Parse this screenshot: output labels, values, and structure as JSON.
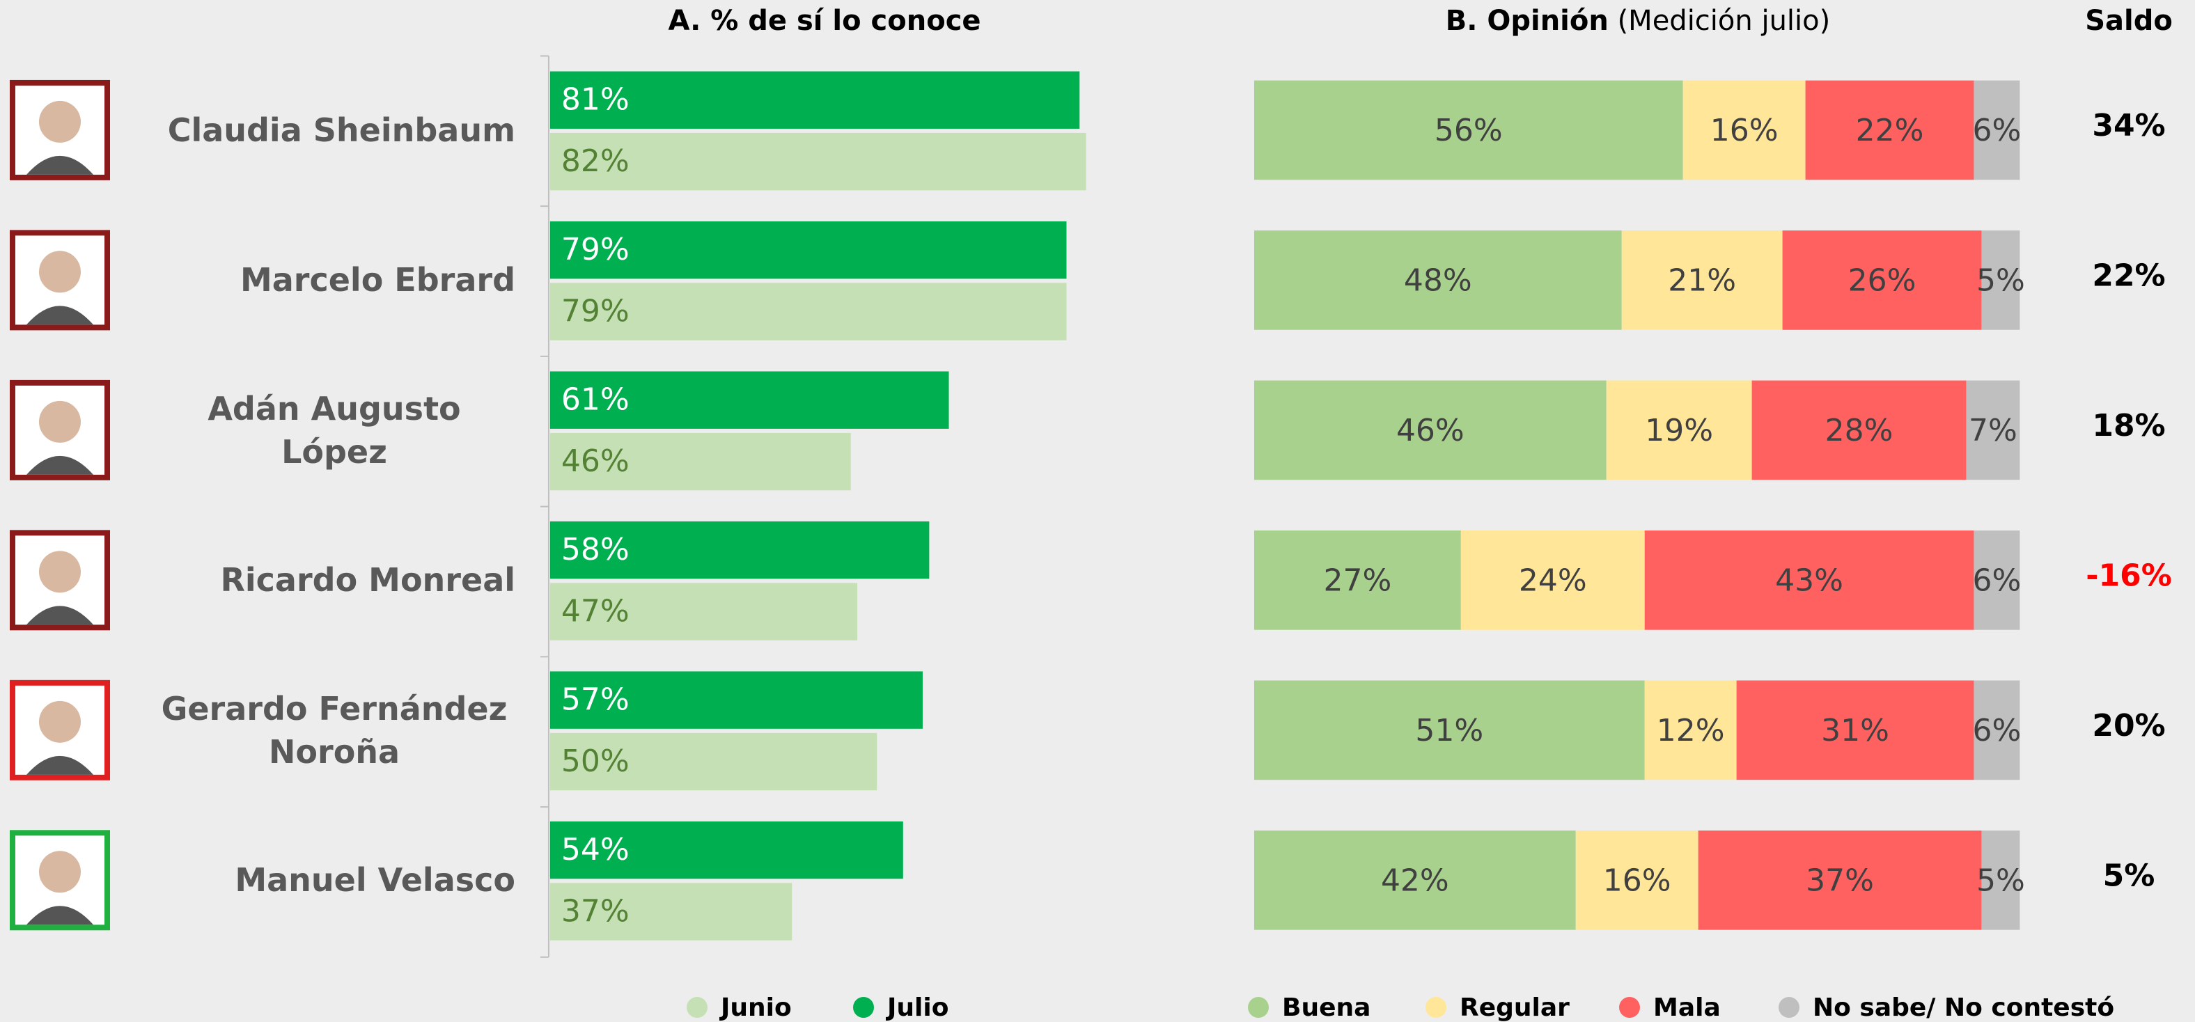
{
  "chart_data": [
    {
      "type": "bar",
      "orientation": "horizontal",
      "title": "A. % de sí lo conoce",
      "categories": [
        "Claudia Sheinbaum",
        "Marcelo Ebrard",
        "Adán Augusto López",
        "Ricardo Monreal",
        "Gerardo Fernández Noroña",
        "Manuel Velasco"
      ],
      "series": [
        {
          "name": "Julio",
          "color": "#00b050",
          "label_color": "#ffffff",
          "values": [
            81,
            79,
            61,
            58,
            57,
            54
          ],
          "value_labels": [
            "81%",
            "79%",
            "61%",
            "58%",
            "57%",
            "54%"
          ]
        },
        {
          "name": "Junio",
          "color": "#c5e0b4",
          "label_color": "#548235",
          "values": [
            82,
            79,
            46,
            47,
            50,
            37
          ],
          "value_labels": [
            "82%",
            "79%",
            "46%",
            "47%",
            "50%",
            "37%"
          ]
        }
      ],
      "legend_order": [
        1,
        0
      ],
      "xlim": [
        0,
        100
      ]
    },
    {
      "type": "stacked_bar",
      "orientation": "horizontal",
      "title": "B. Opinión",
      "subtitle": "(Medición julio)",
      "series": [
        {
          "name": "Buena",
          "color": "#a9d18e",
          "values": [
            56,
            48,
            46,
            27,
            51,
            42
          ],
          "value_labels": [
            "56%",
            "48%",
            "46%",
            "27%",
            "51%",
            "42%"
          ]
        },
        {
          "name": "Regular",
          "color": "#ffe699",
          "values": [
            16,
            21,
            19,
            24,
            12,
            16
          ],
          "value_labels": [
            "16%",
            "21%",
            "19%",
            "24%",
            "12%",
            "16%"
          ]
        },
        {
          "name": "Mala",
          "color": "#ff6161",
          "values": [
            22,
            26,
            28,
            43,
            31,
            37
          ],
          "value_labels": [
            "22%",
            "26%",
            "28%",
            "43%",
            "31%",
            "37%"
          ]
        },
        {
          "name": "No sabe/ No contestó",
          "color": "#bfbfbf",
          "values": [
            6,
            5,
            7,
            6,
            6,
            5
          ],
          "value_labels": [
            "6%",
            "5%",
            "7%",
            "6%",
            "6%",
            "5%"
          ]
        }
      ],
      "xlim": [
        0,
        100
      ]
    },
    {
      "type": "table",
      "title": "Saldo",
      "color": "#000000",
      "negative_color": "#ff0000",
      "values": [
        34,
        22,
        18,
        -16,
        20,
        5
      ],
      "value_labels": [
        "34%",
        "22%",
        "18%",
        "-16%",
        "20%",
        "5%"
      ]
    }
  ]
}
